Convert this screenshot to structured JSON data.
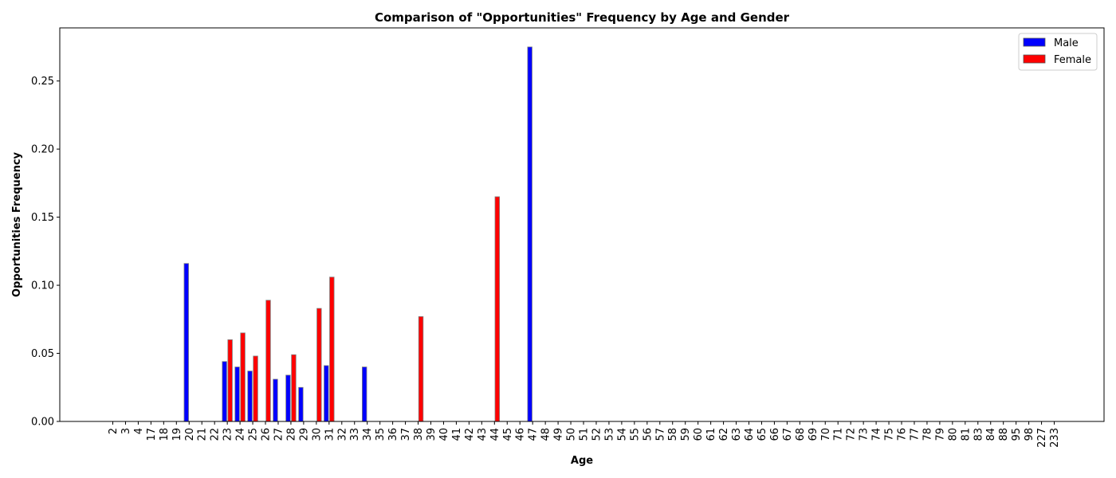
{
  "chart_data": {
    "type": "bar",
    "title": "Comparison of \"Opportunities\" Frequency by Age and Gender",
    "xlabel": "Age",
    "ylabel": "Opportunities Frequency",
    "ylim": [
      0,
      0.289
    ],
    "yticks": [
      0.0,
      0.05,
      0.1,
      0.15,
      0.2,
      0.25
    ],
    "ytick_labels": [
      "0.00",
      "0.05",
      "0.10",
      "0.15",
      "0.20",
      "0.25"
    ],
    "grid": false,
    "legend_position": "top-right",
    "categories": [
      "2",
      "3",
      "4",
      "17",
      "18",
      "19",
      "20",
      "21",
      "22",
      "23",
      "24",
      "25",
      "26",
      "27",
      "28",
      "29",
      "30",
      "31",
      "32",
      "33",
      "34",
      "35",
      "36",
      "37",
      "38",
      "39",
      "40",
      "41",
      "42",
      "43",
      "44",
      "45",
      "46",
      "47",
      "48",
      "49",
      "50",
      "51",
      "52",
      "53",
      "54",
      "55",
      "56",
      "57",
      "58",
      "59",
      "60",
      "61",
      "62",
      "63",
      "64",
      "65",
      "66",
      "67",
      "68",
      "69",
      "70",
      "71",
      "72",
      "73",
      "74",
      "75",
      "76",
      "77",
      "78",
      "79",
      "80",
      "81",
      "83",
      "84",
      "88",
      "95",
      "98",
      "227",
      "233"
    ],
    "series": [
      {
        "name": "Male",
        "color": "#0000ff",
        "values": [
          0,
          0,
          0,
          0,
          0,
          0,
          0.116,
          0,
          0,
          0.044,
          0.04,
          0.037,
          0,
          0.031,
          0.034,
          0.025,
          0,
          0.041,
          0,
          0,
          0.04,
          0,
          0,
          0,
          0,
          0,
          0,
          0,
          0,
          0,
          0,
          0,
          0,
          0.275,
          0,
          0,
          0,
          0,
          0,
          0,
          0,
          0,
          0,
          0,
          0,
          0,
          0,
          0,
          0,
          0,
          0,
          0,
          0,
          0,
          0,
          0,
          0,
          0,
          0,
          0,
          0,
          0,
          0,
          0,
          0,
          0,
          0,
          0,
          0,
          0,
          0,
          0,
          0,
          0,
          0
        ]
      },
      {
        "name": "Female",
        "color": "#ff0000",
        "values": [
          0,
          0,
          0,
          0,
          0,
          0,
          0,
          0,
          0,
          0.06,
          0.065,
          0.048,
          0.089,
          0,
          0.049,
          0,
          0.083,
          0.106,
          0,
          0,
          0,
          0,
          0,
          0,
          0.077,
          0,
          0,
          0,
          0,
          0,
          0.165,
          0,
          0,
          0,
          0,
          0,
          0,
          0,
          0,
          0,
          0,
          0,
          0,
          0,
          0,
          0,
          0,
          0,
          0,
          0,
          0,
          0,
          0,
          0,
          0,
          0,
          0,
          0,
          0,
          0,
          0,
          0,
          0,
          0,
          0,
          0,
          0,
          0,
          0,
          0,
          0,
          0,
          0,
          0,
          0
        ]
      }
    ]
  }
}
